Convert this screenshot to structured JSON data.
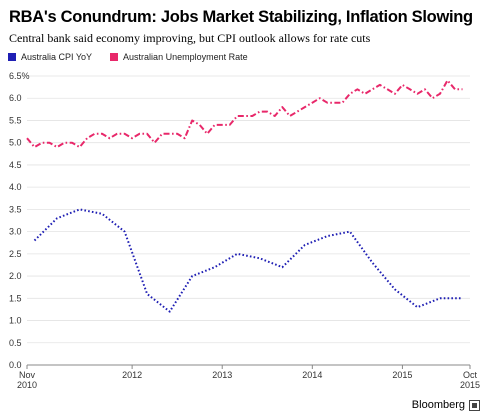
{
  "title": "RBA's Conundrum: Jobs Market Stabilizing, Inflation Slowing",
  "subtitle": "Central bank said economy improving, but CPI outlook allows for rate cuts",
  "brand": "Bloomberg",
  "chart_data": {
    "type": "line",
    "title": "RBA's Conundrum: Jobs Market Stabilizing, Inflation Slowing",
    "subtitle": "Central bank said economy improving, but CPI outlook allows for rate cuts",
    "xlabel": "",
    "ylabel": "",
    "x_range": [
      "2010-11",
      "2015-10"
    ],
    "ylim": [
      0,
      6.5
    ],
    "y_ticks": [
      "0.0",
      "0.5",
      "1.0",
      "1.5",
      "2.0",
      "2.5",
      "3.0",
      "3.5",
      "4.0",
      "4.5",
      "5.0",
      "5.5",
      "6.0",
      "6.5%"
    ],
    "x_ticks": [
      {
        "date": "2010-11",
        "label": "Nov",
        "sublabel": "2010"
      },
      {
        "date": "2012-01",
        "label": "2012",
        "sublabel": ""
      },
      {
        "date": "2013-01",
        "label": "2013",
        "sublabel": ""
      },
      {
        "date": "2014-01",
        "label": "2014",
        "sublabel": ""
      },
      {
        "date": "2015-01",
        "label": "2015",
        "sublabel": ""
      },
      {
        "date": "2015-10",
        "label": "Oct",
        "sublabel": "2015"
      }
    ],
    "grid": true,
    "legend_position": "top-left",
    "series": [
      {
        "name": "Australia CPI YoY",
        "color": "#1f1fb4",
        "style": "dotted",
        "points": [
          [
            "2010-12",
            2.8
          ],
          [
            "2011-03",
            3.3
          ],
          [
            "2011-06",
            3.5
          ],
          [
            "2011-09",
            3.4
          ],
          [
            "2011-12",
            3.0
          ],
          [
            "2012-03",
            1.6
          ],
          [
            "2012-06",
            1.2
          ],
          [
            "2012-09",
            2.0
          ],
          [
            "2012-12",
            2.2
          ],
          [
            "2013-03",
            2.5
          ],
          [
            "2013-06",
            2.4
          ],
          [
            "2013-09",
            2.2
          ],
          [
            "2013-12",
            2.7
          ],
          [
            "2014-03",
            2.9
          ],
          [
            "2014-06",
            3.0
          ],
          [
            "2014-09",
            2.3
          ],
          [
            "2014-12",
            1.7
          ],
          [
            "2015-03",
            1.3
          ],
          [
            "2015-06",
            1.5
          ],
          [
            "2015-09",
            1.5
          ]
        ]
      },
      {
        "name": "Australian Unemployment Rate",
        "color": "#e8286a",
        "style": "dashdot",
        "points": [
          [
            "2010-11",
            5.1
          ],
          [
            "2010-12",
            4.9
          ],
          [
            "2011-01",
            5.0
          ],
          [
            "2011-02",
            5.0
          ],
          [
            "2011-03",
            4.9
          ],
          [
            "2011-04",
            5.0
          ],
          [
            "2011-05",
            5.0
          ],
          [
            "2011-06",
            4.9
          ],
          [
            "2011-07",
            5.1
          ],
          [
            "2011-08",
            5.2
          ],
          [
            "2011-09",
            5.2
          ],
          [
            "2011-10",
            5.1
          ],
          [
            "2011-11",
            5.2
          ],
          [
            "2011-12",
            5.2
          ],
          [
            "2012-01",
            5.1
          ],
          [
            "2012-02",
            5.2
          ],
          [
            "2012-03",
            5.2
          ],
          [
            "2012-04",
            5.0
          ],
          [
            "2012-05",
            5.2
          ],
          [
            "2012-06",
            5.2
          ],
          [
            "2012-07",
            5.2
          ],
          [
            "2012-08",
            5.1
          ],
          [
            "2012-09",
            5.5
          ],
          [
            "2012-10",
            5.4
          ],
          [
            "2012-11",
            5.2
          ],
          [
            "2012-12",
            5.4
          ],
          [
            "2013-01",
            5.4
          ],
          [
            "2013-02",
            5.4
          ],
          [
            "2013-03",
            5.6
          ],
          [
            "2013-04",
            5.6
          ],
          [
            "2013-05",
            5.6
          ],
          [
            "2013-06",
            5.7
          ],
          [
            "2013-07",
            5.7
          ],
          [
            "2013-08",
            5.6
          ],
          [
            "2013-09",
            5.8
          ],
          [
            "2013-10",
            5.6
          ],
          [
            "2013-11",
            5.7
          ],
          [
            "2013-12",
            5.8
          ],
          [
            "2014-01",
            5.9
          ],
          [
            "2014-02",
            6.0
          ],
          [
            "2014-03",
            5.9
          ],
          [
            "2014-04",
            5.9
          ],
          [
            "2014-05",
            5.9
          ],
          [
            "2014-06",
            6.1
          ],
          [
            "2014-07",
            6.2
          ],
          [
            "2014-08",
            6.1
          ],
          [
            "2014-09",
            6.2
          ],
          [
            "2014-10",
            6.3
          ],
          [
            "2014-11",
            6.2
          ],
          [
            "2014-12",
            6.1
          ],
          [
            "2015-01",
            6.3
          ],
          [
            "2015-02",
            6.2
          ],
          [
            "2015-03",
            6.1
          ],
          [
            "2015-04",
            6.2
          ],
          [
            "2015-05",
            6.0
          ],
          [
            "2015-06",
            6.1
          ],
          [
            "2015-07",
            6.4
          ],
          [
            "2015-08",
            6.2
          ],
          [
            "2015-09",
            6.2
          ]
        ]
      }
    ]
  }
}
